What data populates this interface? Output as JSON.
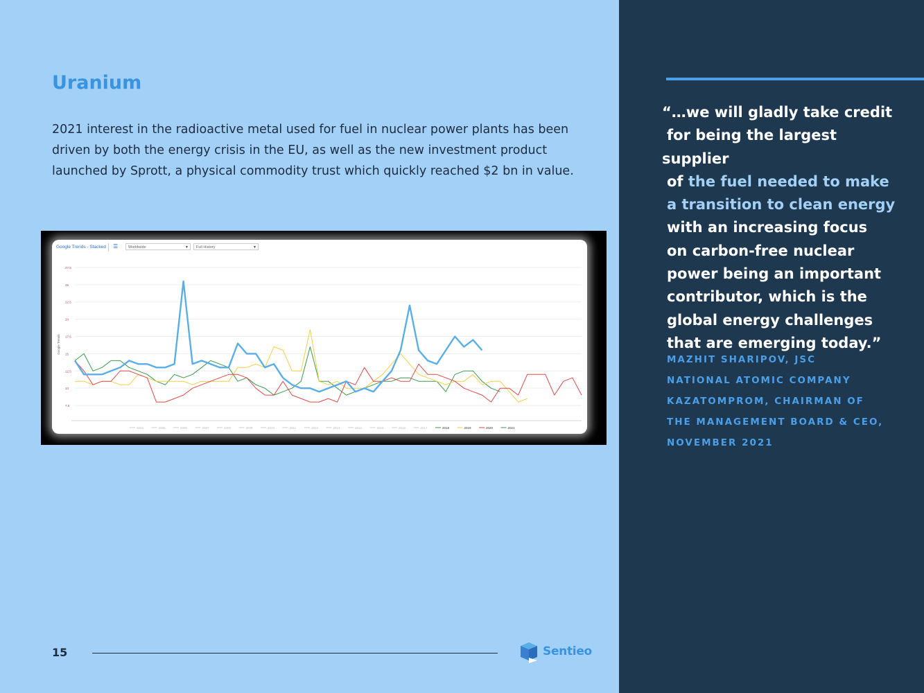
{
  "page": {
    "title": "Uranium",
    "body": "2021 interest in the radioactive metal used for fuel in nuclear power plants has been driven by both the energy crisis in the EU, as well as the new investment product launched by Sprott, a physical commodity trust which quickly reached $2 bn in value.",
    "page_number": "15",
    "logo_text": "Sentieo"
  },
  "quote": {
    "lines": [
      "“…we will gladly take credit",
      "for being the largest supplier",
      "of ",
      "the fuel needed to make",
      "a transition to clean energy",
      "with an increasing focus",
      "on carbon-free nuclear",
      "power being an important",
      "contributor, which is the",
      "global energy challenges",
      "that are emerging today.”"
    ],
    "attribution": [
      "MAZHIT SHARIPOV, JSC",
      "NATIONAL ATOMIC COMPANY",
      "KAZATOMPROM, CHAIRMAN OF",
      "THE MANAGEMENT BOARD & CEO,",
      "NOVEMBER 2021"
    ]
  },
  "colors": {
    "left_bg": "#a3d0f7",
    "right_bg": "#1e384f",
    "accent": "#3a93e0",
    "quote_highlight": "#a3d0f7"
  },
  "chart_data": {
    "type": "line",
    "toolbar": {
      "title": "Google Trends - Stacked",
      "menu_icon": "menu-icon",
      "region": "Worldwide",
      "period": "Full History"
    },
    "ylabel": "Google Trends",
    "yticks": [
      "7.5",
      "10",
      "12.5",
      "15",
      "17.5",
      "20",
      "22.5",
      "25",
      "27.5"
    ],
    "ylim": [
      6,
      28.5
    ],
    "grid": true,
    "legend_position": "bottom",
    "legend": [
      {
        "name": "2004",
        "color": "#cccccc"
      },
      {
        "name": "2005",
        "color": "#cccccc"
      },
      {
        "name": "2006",
        "color": "#cccccc"
      },
      {
        "name": "2007",
        "color": "#cccccc"
      },
      {
        "name": "2008",
        "color": "#cccccc"
      },
      {
        "name": "2009",
        "color": "#cccccc"
      },
      {
        "name": "2010",
        "color": "#cccccc"
      },
      {
        "name": "2011",
        "color": "#cccccc"
      },
      {
        "name": "2012",
        "color": "#cccccc"
      },
      {
        "name": "2013",
        "color": "#cccccc"
      },
      {
        "name": "2014",
        "color": "#cccccc"
      },
      {
        "name": "2015",
        "color": "#cccccc"
      },
      {
        "name": "2016",
        "color": "#cccccc"
      },
      {
        "name": "2017",
        "color": "#cccccc"
      },
      {
        "name": "2018",
        "color": "#3a9a4a"
      },
      {
        "name": "2019",
        "color": "#f0cf47"
      },
      {
        "name": "2020",
        "color": "#e04848"
      },
      {
        "name": "2021",
        "color": "#3a9a4a"
      }
    ],
    "series": [
      {
        "name": "2018",
        "color": "#3a9a4a",
        "width": 1,
        "values": [
          14,
          15,
          12.5,
          13,
          14,
          14,
          13,
          12.5,
          12,
          11,
          10.5,
          12,
          11.5,
          12,
          13,
          14,
          13.5,
          13,
          11,
          11.5,
          10.5,
          10,
          9,
          9.5,
          10,
          11,
          16,
          11,
          11,
          10,
          9,
          9.5,
          10,
          10.5,
          11,
          11,
          11.5,
          11.5,
          11,
          11,
          11,
          9.5,
          12,
          12.5,
          12.5,
          11,
          10,
          9.5
        ]
      },
      {
        "name": "2019",
        "color": "#f0cf47",
        "width": 1,
        "values": [
          11,
          11,
          10.5,
          11,
          11,
          10.5,
          10.5,
          12,
          11.5,
          11,
          11,
          11,
          11,
          10.5,
          11,
          11,
          11,
          11,
          13,
          13,
          13.5,
          13,
          16,
          15.5,
          12.5,
          12.5,
          18.5,
          11,
          10.5,
          11,
          10,
          10,
          10,
          11,
          12,
          13.5,
          15,
          13.5,
          12,
          11.5,
          11,
          10.5,
          11,
          11,
          12,
          10.5,
          11,
          11,
          9.5,
          8,
          8.5
        ]
      },
      {
        "name": "2020",
        "color": "#e04848",
        "width": 1,
        "values": [
          14,
          12.5,
          10.5,
          11,
          11,
          12.5,
          12.5,
          12,
          11.5,
          8,
          8,
          8.5,
          9,
          10,
          10.5,
          11,
          11.5,
          12,
          12,
          11.5,
          10,
          9,
          9,
          11,
          9,
          8.5,
          8,
          8,
          8.5,
          8,
          11,
          10.5,
          13,
          11,
          11,
          11.5,
          11,
          11,
          13.5,
          12,
          12,
          11.5,
          11,
          10,
          9.5,
          9,
          8,
          10,
          10,
          9,
          12,
          12,
          12,
          9,
          11,
          11.5,
          9
        ]
      },
      {
        "name": "Uranium",
        "color": "#5aaee8",
        "width": 2.4,
        "values": [
          14,
          12,
          12,
          12,
          12.5,
          13,
          14,
          13.5,
          13.5,
          13,
          13,
          13.5,
          25.5,
          13.5,
          14,
          13.5,
          13,
          13,
          16.5,
          15,
          15,
          13,
          13.5,
          11.5,
          10.5,
          10,
          10,
          9.5,
          10,
          10.5,
          11,
          9.5,
          10,
          9.5,
          11,
          12.5,
          15.5,
          22,
          15.5,
          14,
          13.5,
          15.5,
          17.5,
          16,
          17,
          15.5
        ]
      }
    ]
  }
}
